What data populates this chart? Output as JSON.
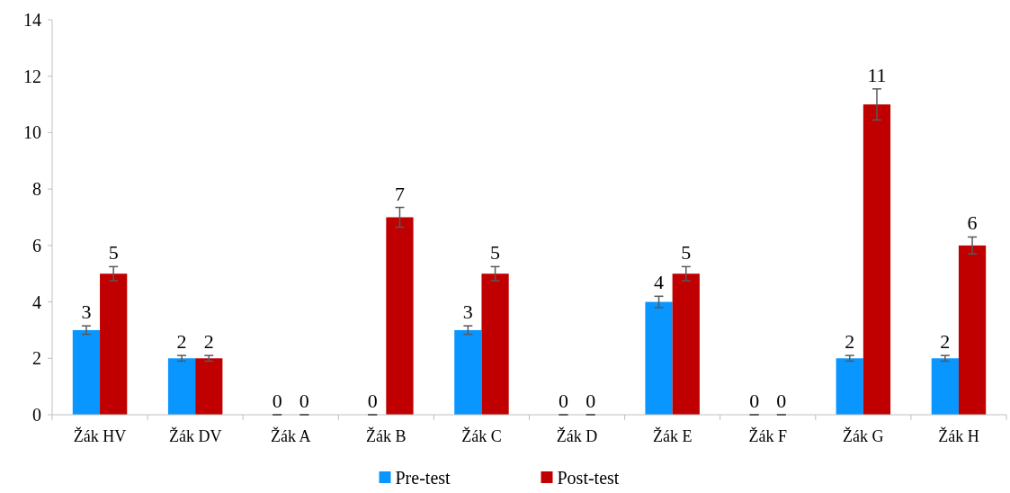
{
  "chart_data": {
    "type": "bar",
    "categories": [
      "Žák HV",
      "Žák DV",
      "Žák A",
      "Žák B",
      "Žák C",
      "Žák D",
      "Žák E",
      "Žák F",
      "Žák G",
      "Žák H"
    ],
    "series": [
      {
        "name": "Pre-test",
        "color": "#0a96ff",
        "values": [
          3,
          2,
          0,
          0,
          3,
          0,
          4,
          0,
          2,
          2
        ],
        "errors": [
          0.15,
          0.1,
          0,
          0,
          0.15,
          0,
          0.2,
          0,
          0.1,
          0.1
        ]
      },
      {
        "name": "Post-test",
        "color": "#c00000",
        "values": [
          5,
          2,
          0,
          7,
          5,
          0,
          5,
          0,
          11,
          6
        ],
        "errors": [
          0.25,
          0.1,
          0,
          0.35,
          0.25,
          0,
          0.25,
          0,
          0.55,
          0.3
        ]
      }
    ],
    "ylim": [
      0,
      14
    ],
    "yticks": [
      0,
      2,
      4,
      6,
      8,
      10,
      12,
      14
    ],
    "grid": false,
    "data_labels": true,
    "legend": "bottom"
  }
}
